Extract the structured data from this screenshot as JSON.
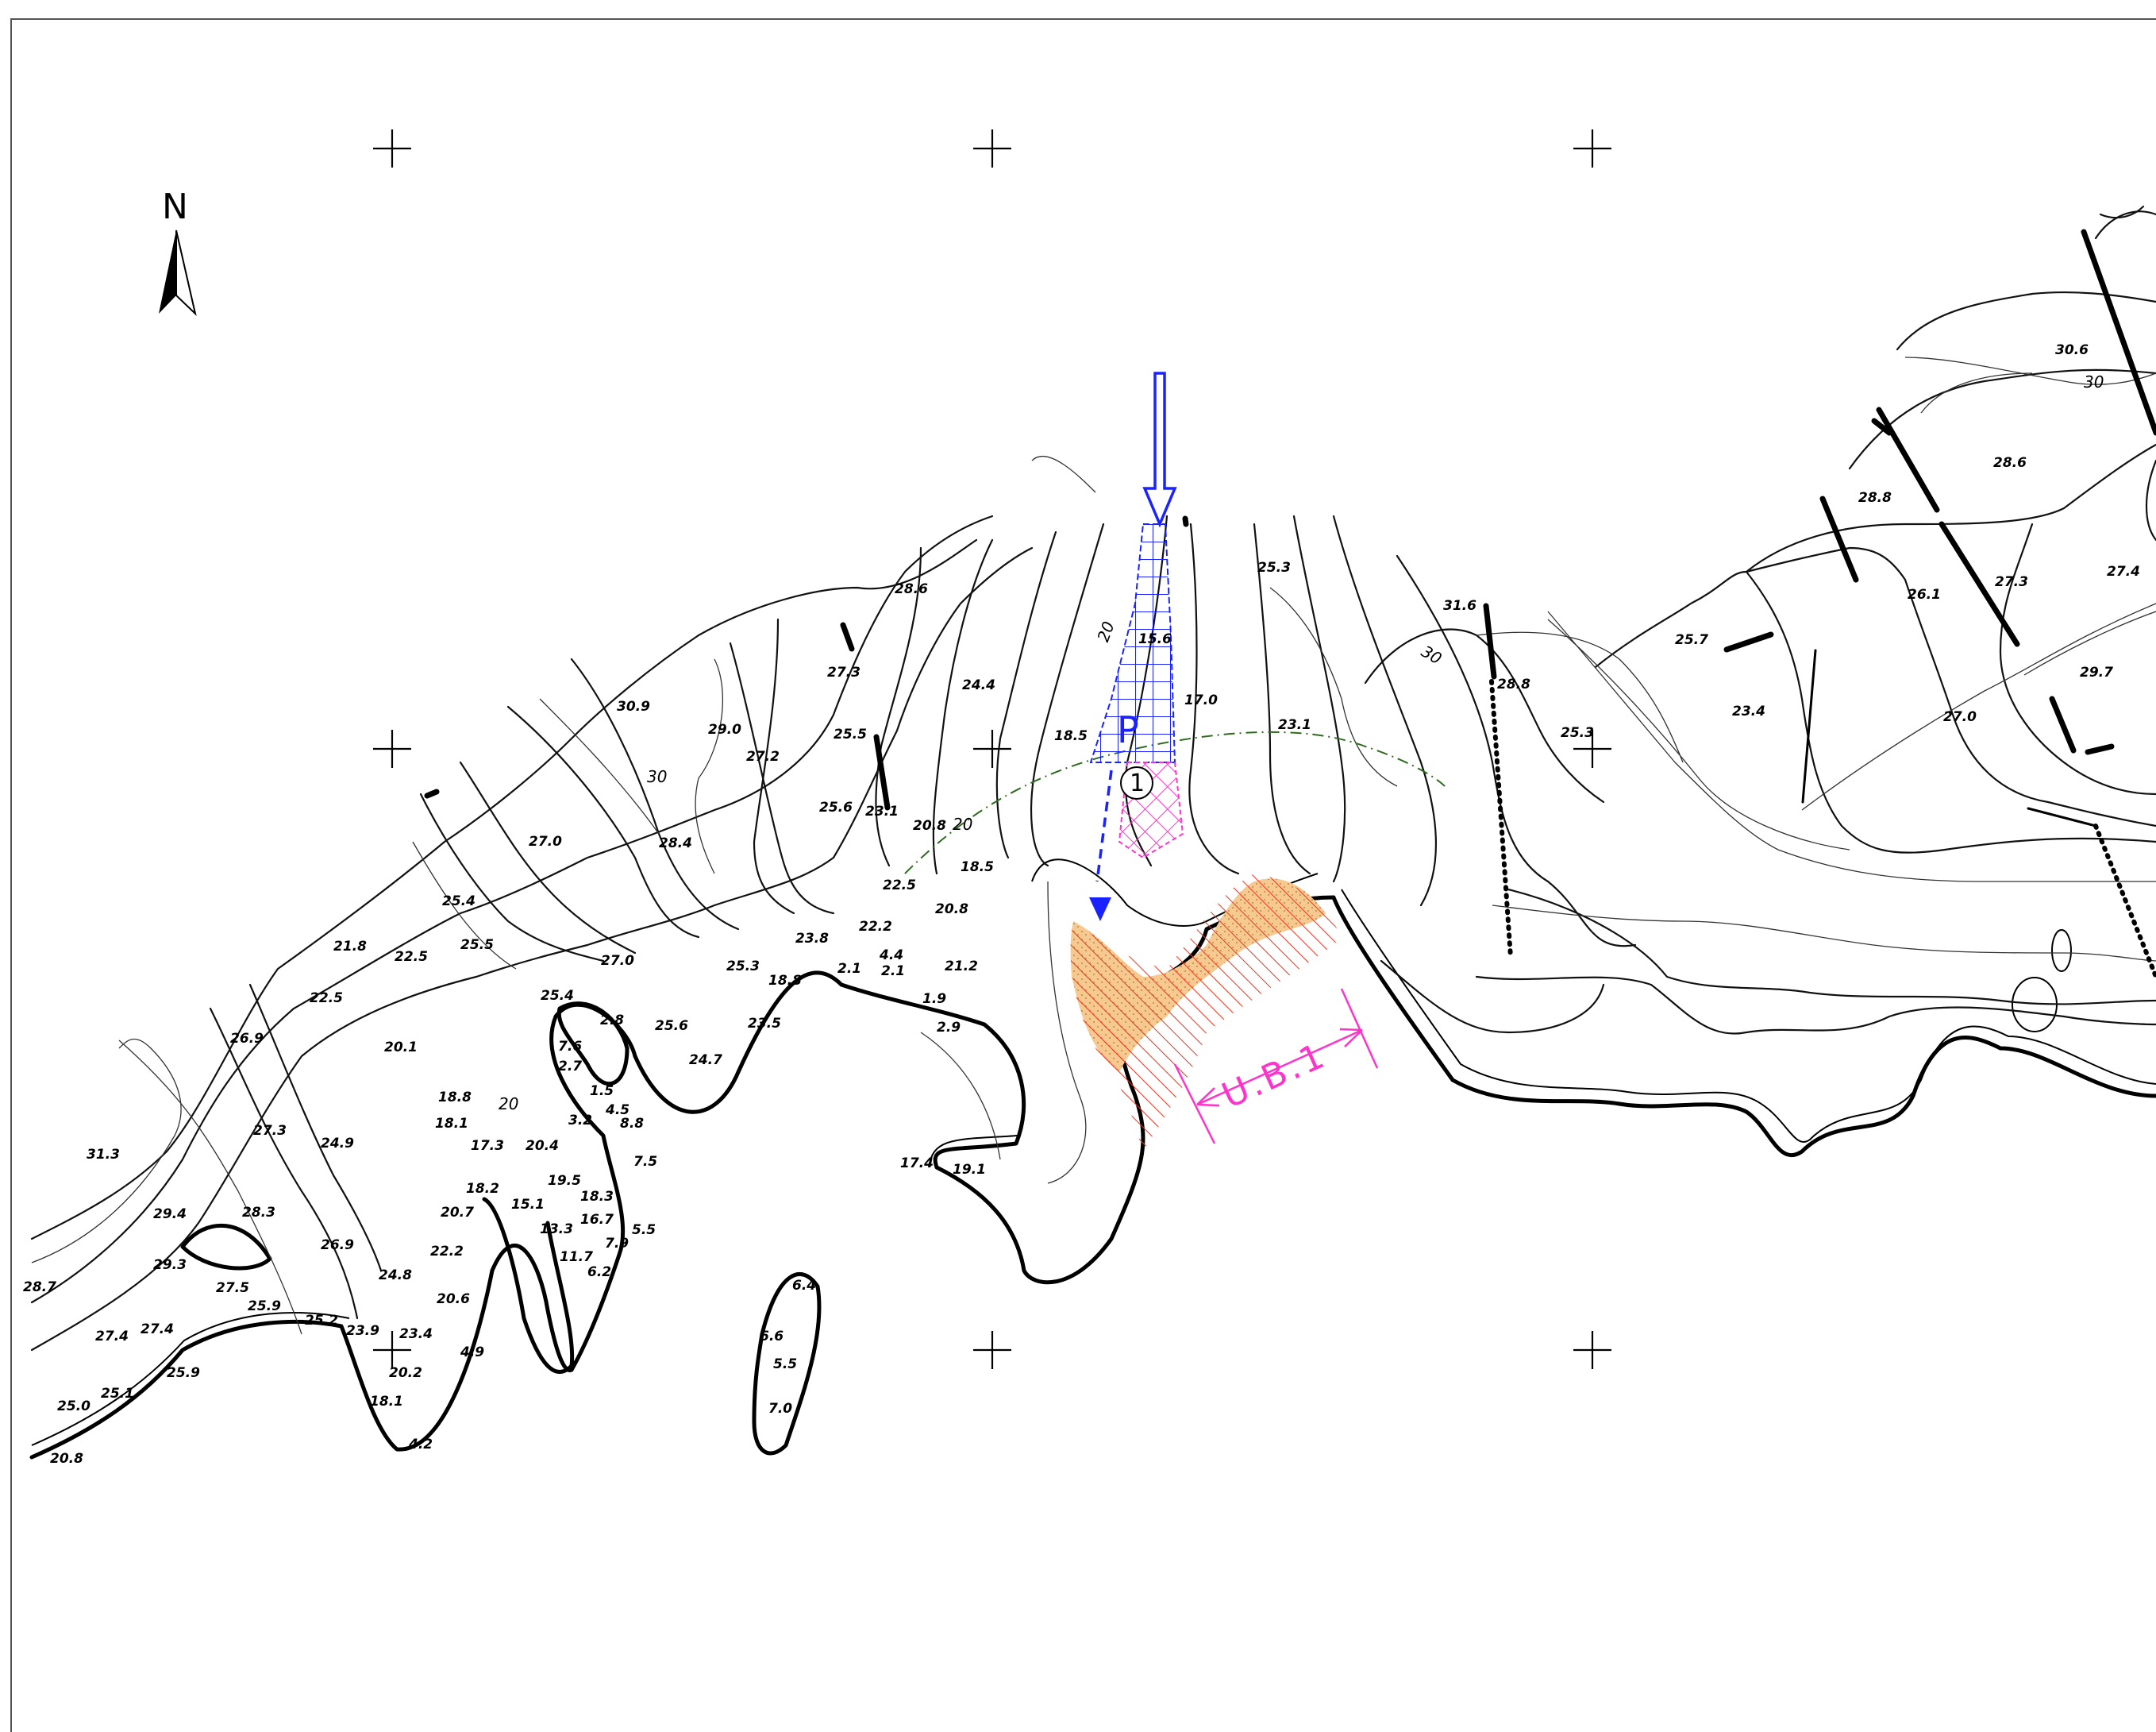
{
  "north_arrow": {
    "label": "N"
  },
  "parking": {
    "label": "P"
  },
  "zone": {
    "label": "U.B.1"
  },
  "marker": {
    "label": "1"
  },
  "colors": {
    "parking_hatch": "#1a23ff",
    "zone_hatch": "#ff33cc",
    "sand_fill": "#f5c98f",
    "hatch_red": "#e8351f",
    "boundary_line": "#2f6b1f"
  },
  "contour_labels": [
    "20",
    "30"
  ],
  "elevations": [
    "28.6",
    "27.3",
    "24.4",
    "30.9",
    "29.0",
    "27.2",
    "25.5",
    "25.6",
    "23.1",
    "20.8",
    "18.5",
    "27.0",
    "28.4",
    "25.4",
    "25.5",
    "21.8",
    "22.5",
    "22.5",
    "27.0",
    "25.3",
    "18.8",
    "23.8",
    "22.2",
    "4.4",
    "2.1",
    "2.1",
    "20.8",
    "21.2",
    "1.9",
    "2.9",
    "22.5",
    "20.1",
    "18.8",
    "18.1",
    "17.3",
    "20.4",
    "26.9",
    "27.3",
    "24.9",
    "31.3",
    "28.3",
    "29.4",
    "29.3",
    "28.7",
    "27.5",
    "26.9",
    "25.9",
    "25.2",
    "24.8",
    "22.2",
    "20.7",
    "18.2",
    "15.1",
    "20.6",
    "23.9",
    "23.4",
    "27.4",
    "27.4",
    "25.9",
    "25.1",
    "25.0",
    "20.8",
    "20.2",
    "18.1",
    "1.5",
    "4.5",
    "8.8",
    "7.5",
    "5.5",
    "7.9",
    "16.7",
    "18.3",
    "19.5",
    "13.3",
    "11.7",
    "6.2",
    "2.8",
    "7.6",
    "2.7",
    "3.2",
    "25.4",
    "25.6",
    "24.7",
    "23.5",
    "17.4",
    "19.1",
    "6.4",
    "6.6",
    "5.5",
    "7.0",
    "18.5",
    "15.6",
    "17.0",
    "25.3",
    "23.1",
    "31.6",
    "28.8",
    "25.7",
    "25.3",
    "23.4",
    "30.6",
    "28.6",
    "28.8",
    "26.1",
    "27.3",
    "27.4",
    "29.7",
    "27.0",
    "4.2",
    "4.9"
  ]
}
